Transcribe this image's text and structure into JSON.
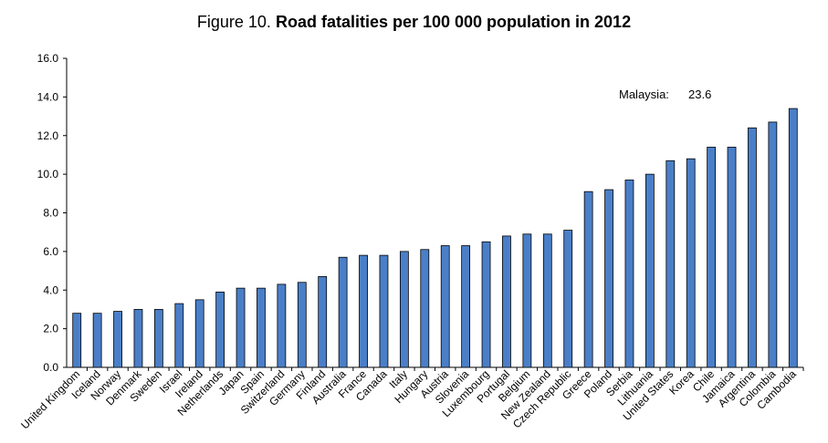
{
  "title_prefix": "Figure 10.",
  "title_main": "Road fatalities per 100 000 population in 2012",
  "chart_data": {
    "type": "bar",
    "title": "Figure 10. Road fatalities per 100 000 population in 2012",
    "xlabel": "",
    "ylabel": "",
    "ylim": [
      0,
      16
    ],
    "yticks": [
      "0.0",
      "2.0",
      "4.0",
      "6.0",
      "8.0",
      "10.0",
      "12.0",
      "14.0",
      "16.0"
    ],
    "grid": false,
    "bar_color": "#4a7fc8",
    "categories": [
      "United Kingdom",
      "Iceland",
      "Norway",
      "Denmark",
      "Sweden",
      "Israel",
      "Ireland",
      "Netherlands",
      "Japan",
      "Spain",
      "Switzerland",
      "Germany",
      "Finland",
      "Australia",
      "France",
      "Canada",
      "Italy",
      "Hungary",
      "Austria",
      "Slovenia",
      "Luxembourg",
      "Portugal",
      "Belgium",
      "New Zealand",
      "Czech Republic",
      "Greece",
      "Poland",
      "Serbia",
      "Lithuania",
      "United States",
      "Korea",
      "Chile",
      "Jamaica",
      "Argentina",
      "Colombia",
      "Cambodia"
    ],
    "values": [
      2.8,
      2.8,
      2.9,
      3.0,
      3.0,
      3.3,
      3.5,
      3.9,
      4.1,
      4.1,
      4.3,
      4.4,
      4.7,
      5.7,
      5.8,
      5.8,
      6.0,
      6.1,
      6.3,
      6.3,
      6.5,
      6.8,
      6.9,
      6.9,
      7.1,
      9.1,
      9.2,
      9.7,
      10.0,
      10.7,
      10.8,
      11.4,
      11.4,
      12.4,
      12.7,
      13.4
    ],
    "annotation": {
      "label": "Malaysia:",
      "value": "23.6"
    }
  }
}
